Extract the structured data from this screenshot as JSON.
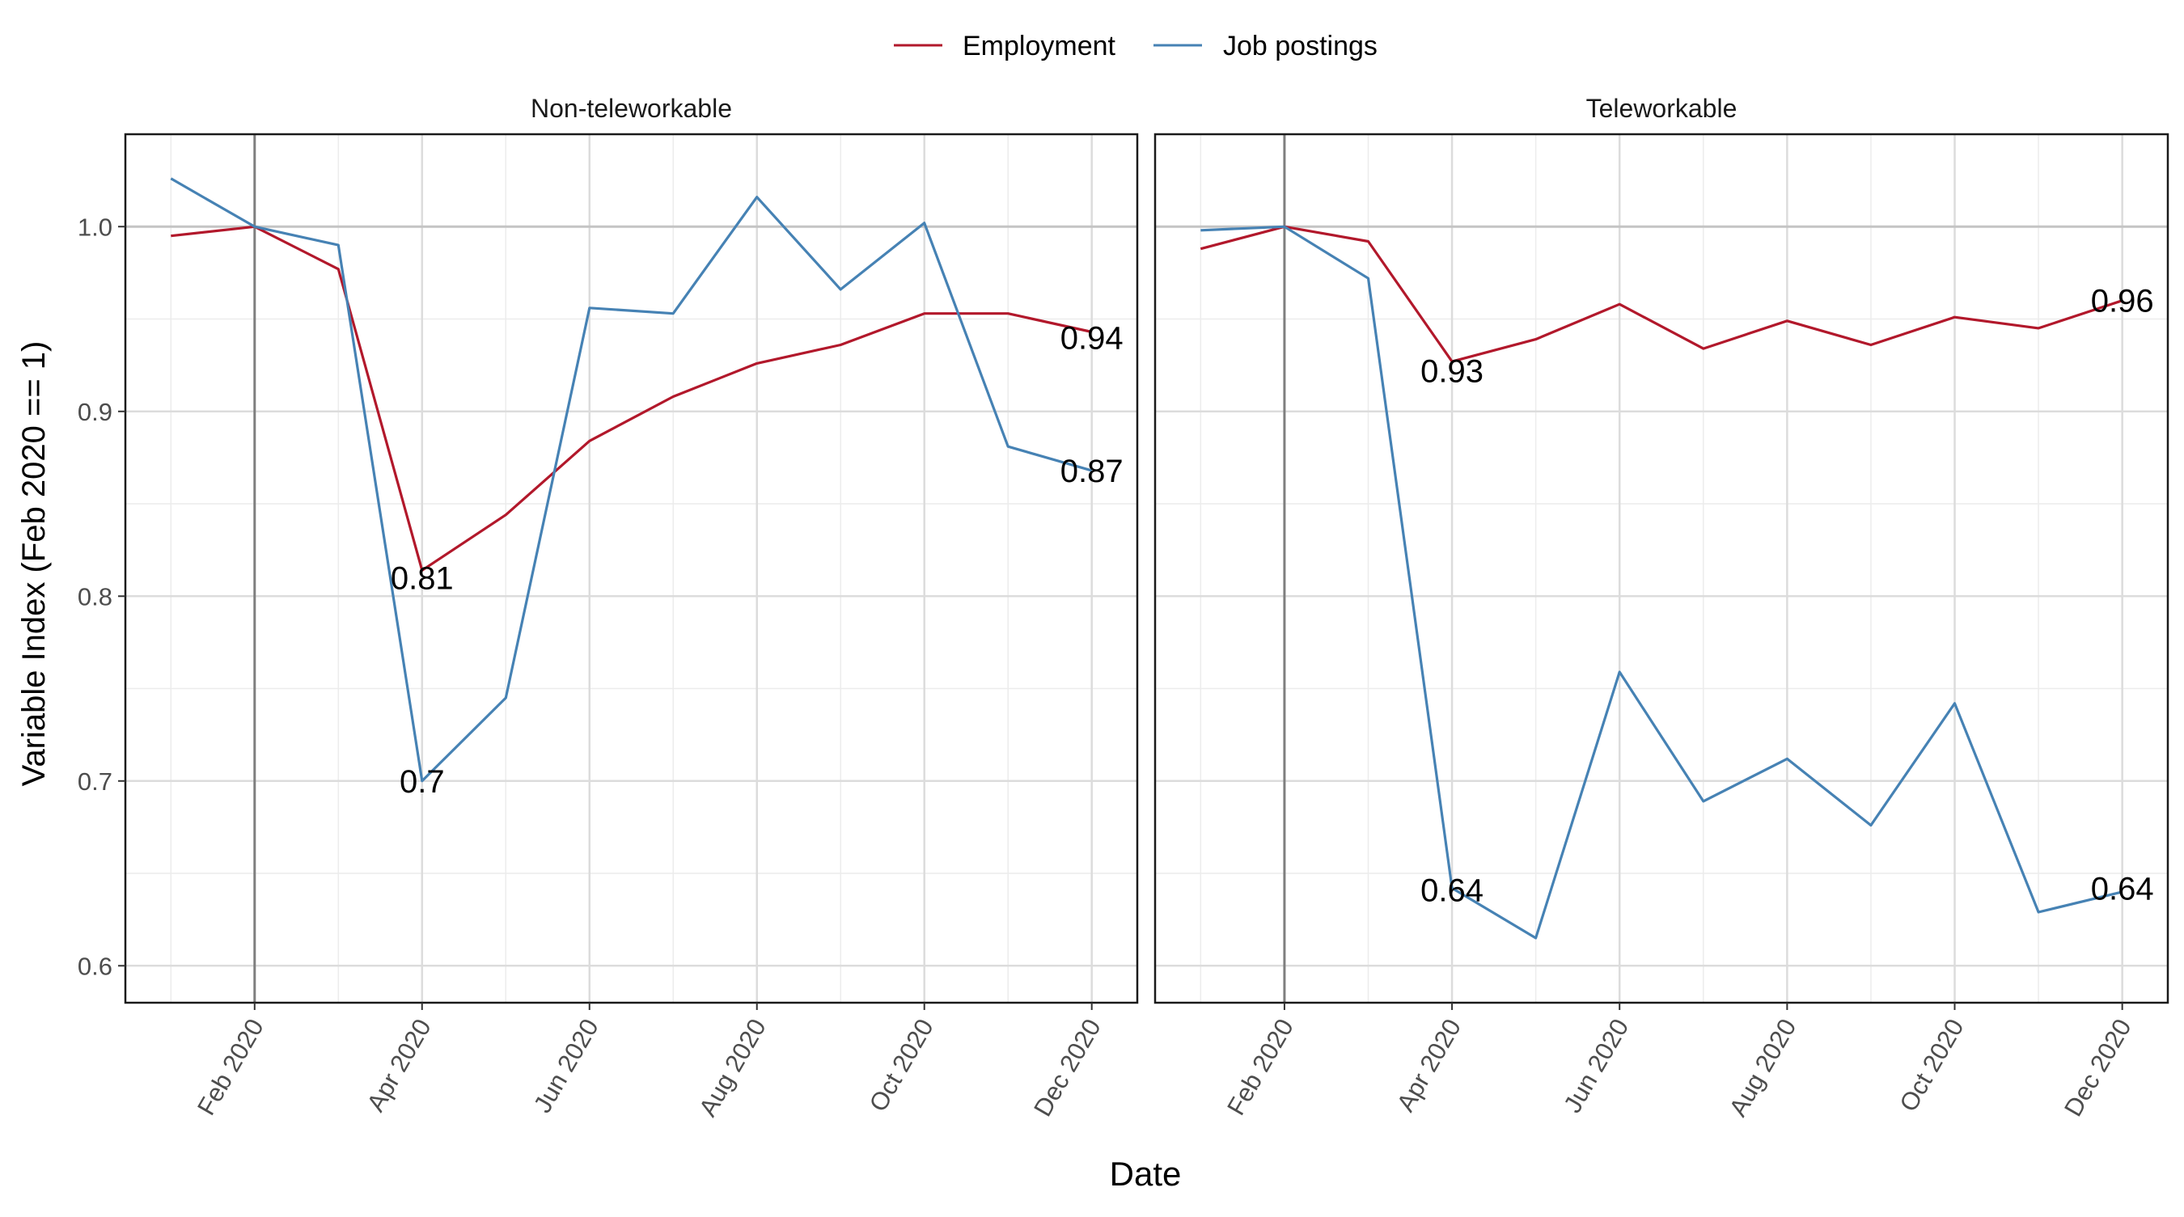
{
  "chart_data": {
    "type": "line",
    "xlabel": "Date",
    "ylabel": "Variable Index (Feb 2020 == 1)",
    "legend": {
      "position": "top",
      "entries": [
        {
          "name": "Employment",
          "color": "#b2182b"
        },
        {
          "name": "Job postings",
          "color": "#4682b4"
        }
      ]
    },
    "x": [
      "2020-01",
      "2020-02",
      "2020-03",
      "2020-04",
      "2020-05",
      "2020-06",
      "2020-07",
      "2020-08",
      "2020-09",
      "2020-10",
      "2020-11",
      "2020-12"
    ],
    "x_tick_labels": [
      "Feb 2020",
      "Apr 2020",
      "Jun 2020",
      "Aug 2020",
      "Oct 2020",
      "Dec 2020"
    ],
    "x_tick_values": [
      "2020-02",
      "2020-04",
      "2020-06",
      "2020-08",
      "2020-10",
      "2020-12"
    ],
    "ylim": [
      0.58,
      1.05
    ],
    "y_ticks": [
      "0.6",
      "0.7",
      "0.8",
      "0.9",
      "1.0"
    ],
    "reference_hline": 1.0,
    "reference_vline": "2020-02",
    "grid": true,
    "panels": [
      {
        "title": "Non-teleworkable",
        "series": [
          {
            "name": "Employment",
            "values": [
              0.995,
              1.0,
              0.977,
              0.814,
              0.844,
              0.884,
              0.908,
              0.926,
              0.936,
              0.953,
              0.953,
              0.943
            ]
          },
          {
            "name": "Job postings",
            "values": [
              1.026,
              1.0,
              0.99,
              0.7,
              0.745,
              0.956,
              0.953,
              1.016,
              0.966,
              1.002,
              0.881,
              0.868
            ]
          }
        ],
        "annotations": [
          {
            "text": "0.81",
            "x": "2020-04",
            "y": 0.81
          },
          {
            "text": "0.7",
            "x": "2020-04",
            "y": 0.7
          },
          {
            "text": "0.94",
            "x": "2020-12",
            "y": 0.94
          },
          {
            "text": "0.87",
            "x": "2020-12",
            "y": 0.868
          }
        ]
      },
      {
        "title": "Teleworkable",
        "series": [
          {
            "name": "Employment",
            "values": [
              0.988,
              1.0,
              0.992,
              0.927,
              0.939,
              0.958,
              0.934,
              0.949,
              0.936,
              0.951,
              0.945,
              0.96
            ]
          },
          {
            "name": "Job postings",
            "values": [
              0.998,
              1.0,
              0.972,
              0.642,
              0.615,
              0.759,
              0.689,
              0.712,
              0.676,
              0.742,
              0.629,
              0.64
            ]
          }
        ],
        "annotations": [
          {
            "text": "0.93",
            "x": "2020-04",
            "y": 0.922
          },
          {
            "text": "0.64",
            "x": "2020-04",
            "y": 0.641
          },
          {
            "text": "0.96",
            "x": "2020-12",
            "y": 0.96
          },
          {
            "text": "0.64",
            "x": "2020-12",
            "y": 0.642
          }
        ]
      }
    ]
  }
}
